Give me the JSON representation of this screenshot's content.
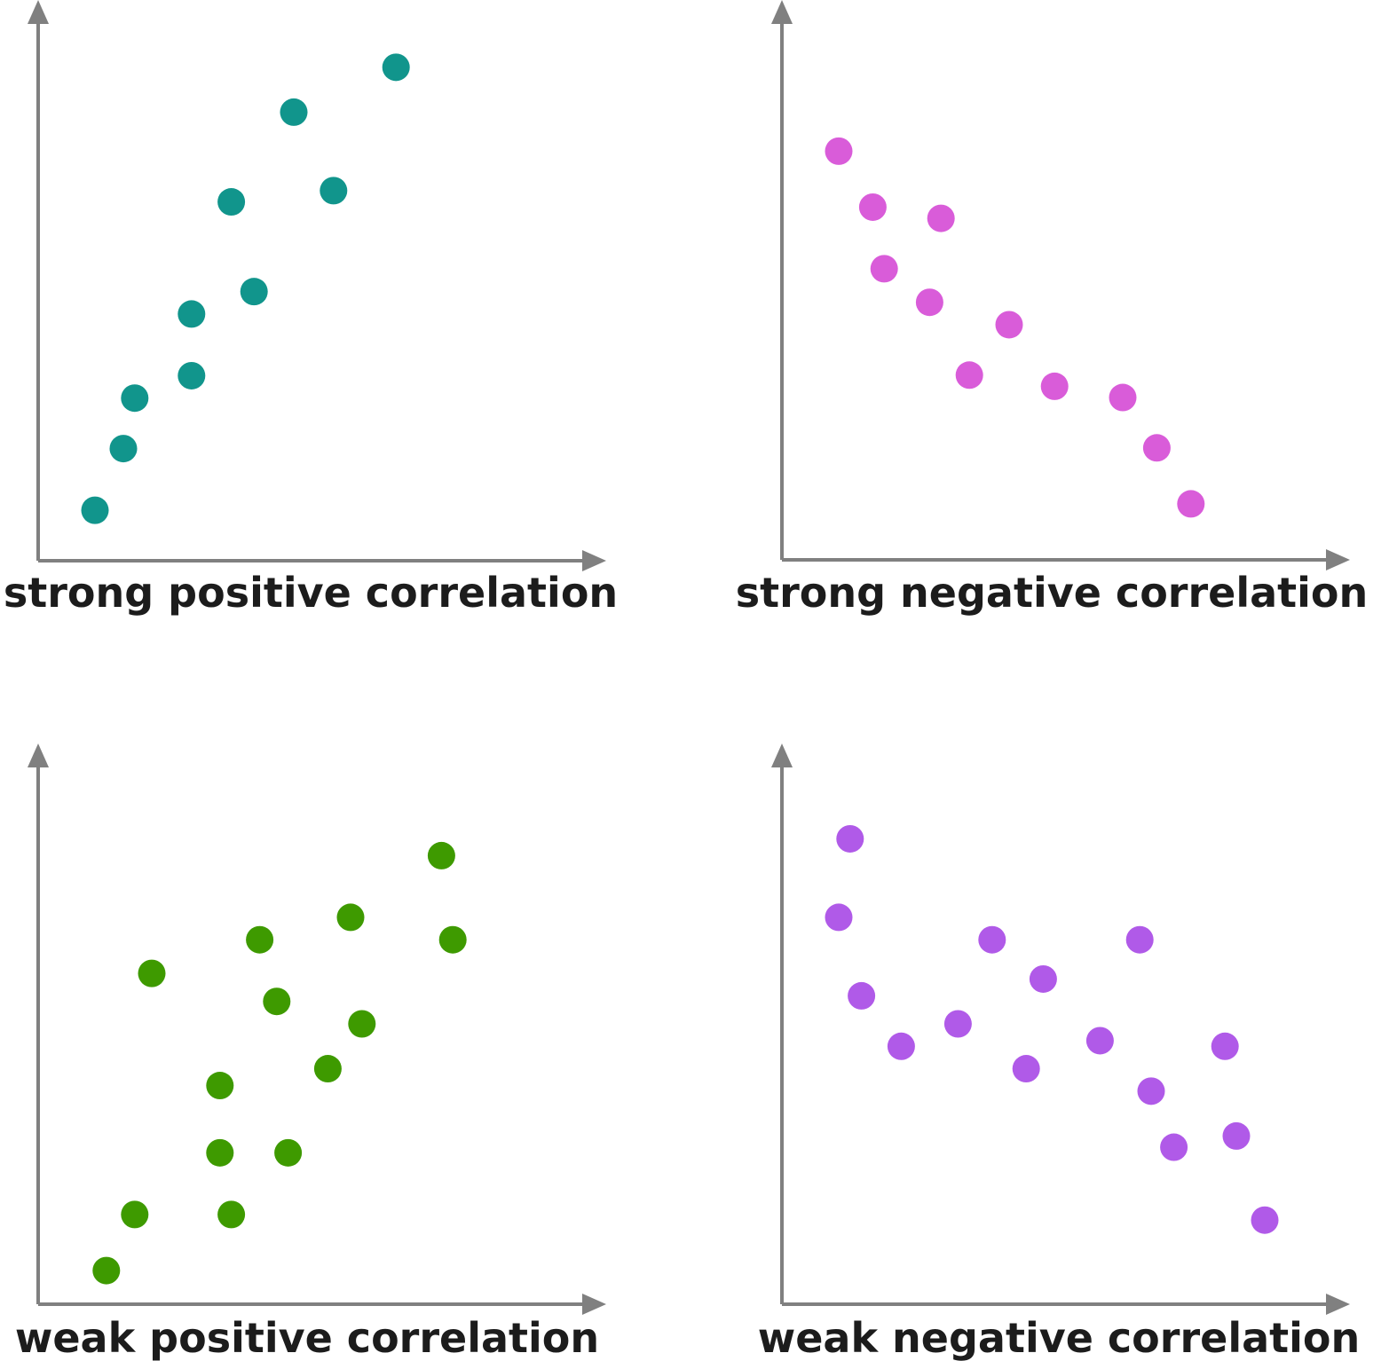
{
  "chart_data": [
    {
      "type": "scatter",
      "title": "strong positive correlation",
      "color": "#11958c",
      "xlabel": "",
      "ylabel": "",
      "xlim": [
        0,
        100
      ],
      "ylim": [
        0,
        100
      ],
      "grid": false,
      "points": [
        {
          "x": 10,
          "y": 9
        },
        {
          "x": 15,
          "y": 20
        },
        {
          "x": 17,
          "y": 29
        },
        {
          "x": 27,
          "y": 33
        },
        {
          "x": 27,
          "y": 44
        },
        {
          "x": 38,
          "y": 48
        },
        {
          "x": 34,
          "y": 64
        },
        {
          "x": 52,
          "y": 66
        },
        {
          "x": 45,
          "y": 80
        },
        {
          "x": 63,
          "y": 88
        }
      ]
    },
    {
      "type": "scatter",
      "title": "strong negative correlation",
      "color": "#d95cd9",
      "xlabel": "",
      "ylabel": "",
      "xlim": [
        0,
        100
      ],
      "ylim": [
        0,
        100
      ],
      "grid": false,
      "points": [
        {
          "x": 10,
          "y": 73
        },
        {
          "x": 16,
          "y": 63
        },
        {
          "x": 18,
          "y": 52
        },
        {
          "x": 28,
          "y": 61
        },
        {
          "x": 26,
          "y": 46
        },
        {
          "x": 40,
          "y": 42
        },
        {
          "x": 33,
          "y": 33
        },
        {
          "x": 48,
          "y": 31
        },
        {
          "x": 60,
          "y": 29
        },
        {
          "x": 66,
          "y": 20
        },
        {
          "x": 72,
          "y": 10
        }
      ]
    },
    {
      "type": "scatter",
      "title": "weak positive correlation",
      "color": "#3e9a00",
      "xlabel": "",
      "ylabel": "",
      "xlim": [
        0,
        100
      ],
      "ylim": [
        0,
        100
      ],
      "grid": false,
      "points": [
        {
          "x": 12,
          "y": 6
        },
        {
          "x": 17,
          "y": 16
        },
        {
          "x": 34,
          "y": 16
        },
        {
          "x": 32,
          "y": 27
        },
        {
          "x": 44,
          "y": 27
        },
        {
          "x": 32,
          "y": 39
        },
        {
          "x": 51,
          "y": 42
        },
        {
          "x": 20,
          "y": 59
        },
        {
          "x": 42,
          "y": 54
        },
        {
          "x": 57,
          "y": 50
        },
        {
          "x": 39,
          "y": 65
        },
        {
          "x": 55,
          "y": 69
        },
        {
          "x": 73,
          "y": 65
        },
        {
          "x": 71,
          "y": 80
        }
      ]
    },
    {
      "type": "scatter",
      "title": "weak negative correlation",
      "color": "#b05ae8",
      "xlabel": "",
      "ylabel": "",
      "xlim": [
        0,
        100
      ],
      "ylim": [
        0,
        100
      ],
      "grid": false,
      "points": [
        {
          "x": 12,
          "y": 83
        },
        {
          "x": 10,
          "y": 69
        },
        {
          "x": 14,
          "y": 55
        },
        {
          "x": 21,
          "y": 46
        },
        {
          "x": 31,
          "y": 50
        },
        {
          "x": 37,
          "y": 65
        },
        {
          "x": 46,
          "y": 58
        },
        {
          "x": 43,
          "y": 42
        },
        {
          "x": 56,
          "y": 47
        },
        {
          "x": 63,
          "y": 65
        },
        {
          "x": 65,
          "y": 38
        },
        {
          "x": 78,
          "y": 46
        },
        {
          "x": 69,
          "y": 28
        },
        {
          "x": 80,
          "y": 30
        },
        {
          "x": 85,
          "y": 15
        }
      ]
    }
  ]
}
